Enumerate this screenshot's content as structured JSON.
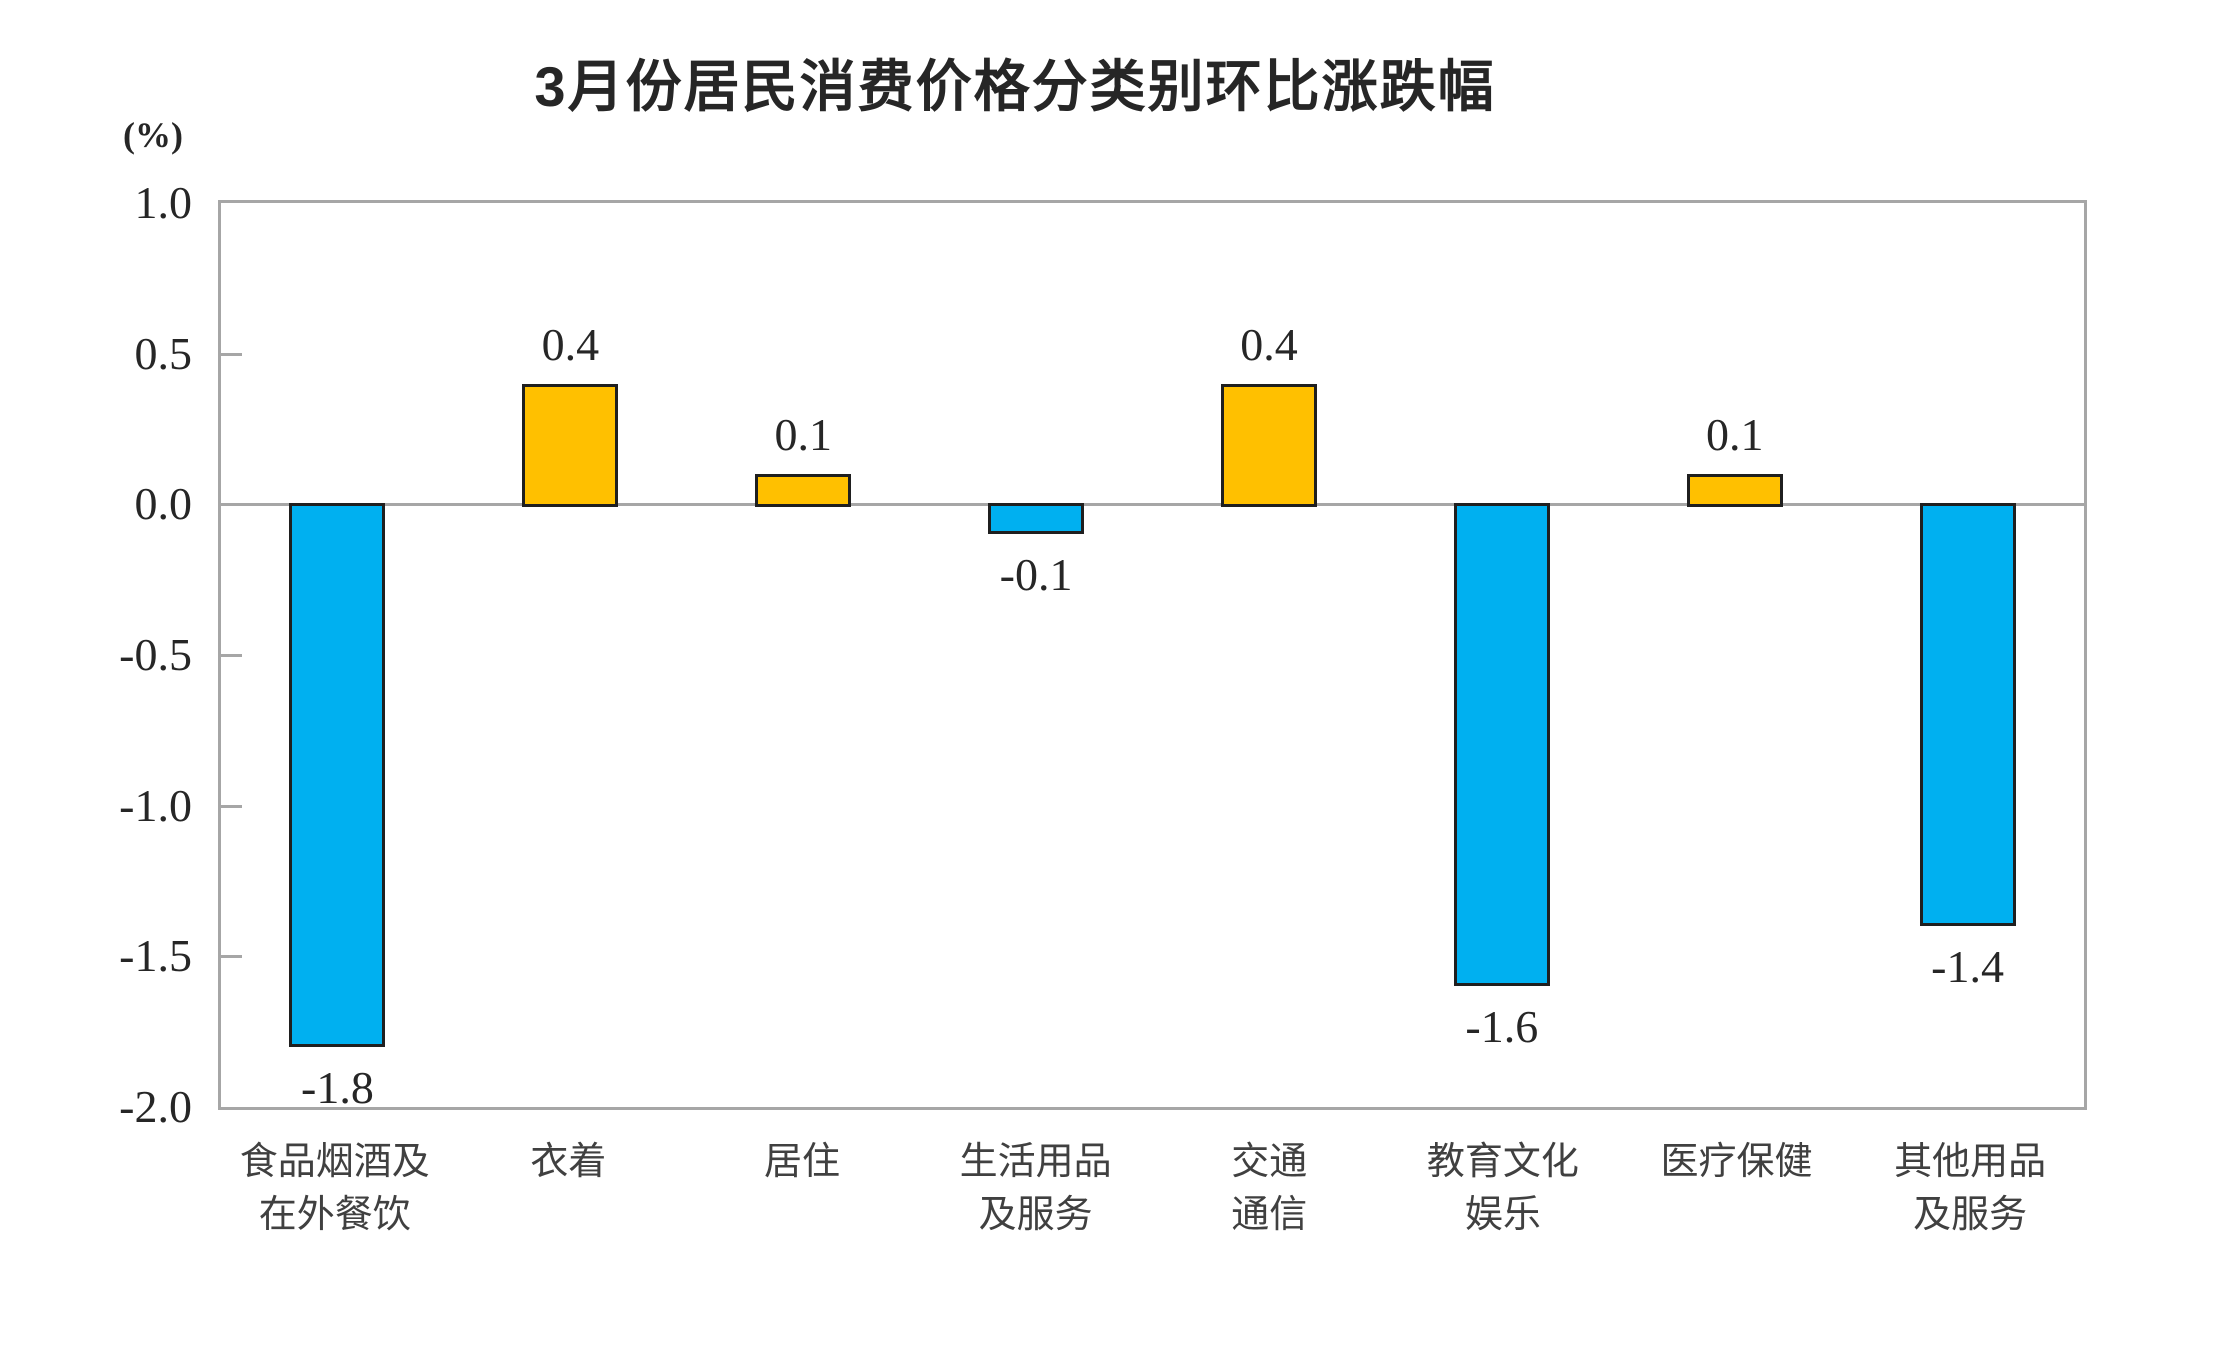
{
  "chart_data": {
    "type": "bar",
    "title": "3月份居民消费价格分类别环比涨跌幅",
    "ylabel": "(%)",
    "ylim": [
      -2.0,
      1.0
    ],
    "yticks": [
      1.0,
      0.5,
      0.0,
      -0.5,
      -1.0,
      -1.5,
      -2.0
    ],
    "categories": [
      "食品烟酒及\n在外餐饮",
      "衣着",
      "居住",
      "生活用品\n及服务",
      "交通\n通信",
      "教育文化\n娱乐",
      "医疗保健",
      "其他用品\n及服务"
    ],
    "values": [
      -1.8,
      0.4,
      0.1,
      -0.1,
      0.4,
      -1.6,
      0.1,
      -1.4
    ],
    "grid": false,
    "legend": "none",
    "colors": {
      "positive_bar": "#FFC000",
      "negative_bar": "#00B0F0",
      "bar_border": "#1F1F1F",
      "axis_line": "#A6A6A6",
      "value_text": "#262626",
      "category_text": "#404040"
    }
  }
}
